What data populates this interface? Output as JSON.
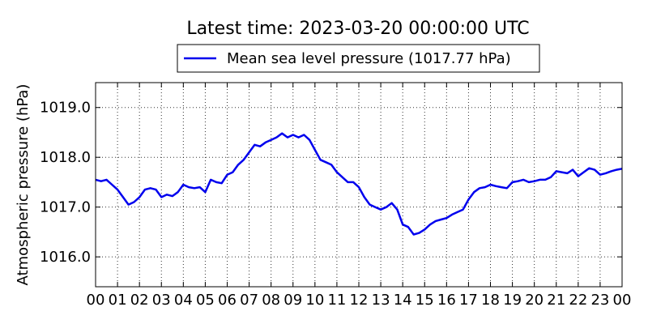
{
  "chart_data": {
    "type": "line",
    "title": "Latest time: 2023-03-20 00:00:00 UTC",
    "ylabel": "Atmospheric pressure (hPa)",
    "xlabel": "",
    "xlim": [
      0,
      24
    ],
    "ylim": [
      1015.4,
      1019.5
    ],
    "grid": true,
    "legend_position": "top-center",
    "x_tick_labels": [
      "00",
      "01",
      "02",
      "03",
      "04",
      "05",
      "06",
      "07",
      "08",
      "09",
      "10",
      "11",
      "12",
      "13",
      "14",
      "15",
      "16",
      "17",
      "18",
      "19",
      "20",
      "21",
      "22",
      "23",
      "00"
    ],
    "y_ticks": [
      1016.0,
      1017.0,
      1018.0,
      1019.0
    ],
    "y_tick_labels": [
      "1016.0",
      "1017.0",
      "1018.0",
      "1019.0"
    ],
    "series": [
      {
        "name": "Mean sea level pressure (1017.77 hPa)",
        "color": "#0000ee",
        "x": [
          0.0,
          0.25,
          0.5,
          0.75,
          1.0,
          1.25,
          1.5,
          1.75,
          2.0,
          2.25,
          2.5,
          2.75,
          3.0,
          3.25,
          3.5,
          3.75,
          4.0,
          4.25,
          4.5,
          4.75,
          5.0,
          5.25,
          5.5,
          5.75,
          6.0,
          6.25,
          6.5,
          6.75,
          7.0,
          7.25,
          7.5,
          7.75,
          8.0,
          8.25,
          8.5,
          8.75,
          9.0,
          9.25,
          9.5,
          9.75,
          10.0,
          10.25,
          10.5,
          10.75,
          11.0,
          11.25,
          11.5,
          11.75,
          12.0,
          12.25,
          12.5,
          12.75,
          13.0,
          13.25,
          13.5,
          13.75,
          14.0,
          14.25,
          14.5,
          14.75,
          15.0,
          15.25,
          15.5,
          15.75,
          16.0,
          16.25,
          16.5,
          16.75,
          17.0,
          17.25,
          17.5,
          17.75,
          18.0,
          18.25,
          18.5,
          18.75,
          19.0,
          19.25,
          19.5,
          19.75,
          20.0,
          20.25,
          20.5,
          20.75,
          21.0,
          21.25,
          21.5,
          21.75,
          22.0,
          22.25,
          22.5,
          22.75,
          23.0,
          23.25,
          23.5,
          23.75,
          24.0
        ],
        "y": [
          1017.55,
          1017.52,
          1017.55,
          1017.45,
          1017.35,
          1017.2,
          1017.05,
          1017.1,
          1017.2,
          1017.35,
          1017.38,
          1017.35,
          1017.2,
          1017.25,
          1017.22,
          1017.3,
          1017.45,
          1017.4,
          1017.38,
          1017.4,
          1017.3,
          1017.55,
          1017.5,
          1017.48,
          1017.65,
          1017.7,
          1017.85,
          1017.95,
          1018.1,
          1018.25,
          1018.22,
          1018.3,
          1018.35,
          1018.4,
          1018.48,
          1018.4,
          1018.45,
          1018.4,
          1018.45,
          1018.35,
          1018.15,
          1017.95,
          1017.9,
          1017.85,
          1017.7,
          1017.6,
          1017.5,
          1017.5,
          1017.4,
          1017.2,
          1017.05,
          1017.0,
          1016.95,
          1017.0,
          1017.08,
          1016.95,
          1016.65,
          1016.6,
          1016.45,
          1016.48,
          1016.55,
          1016.65,
          1016.72,
          1016.75,
          1016.78,
          1016.85,
          1016.9,
          1016.95,
          1017.15,
          1017.3,
          1017.38,
          1017.4,
          1017.45,
          1017.42,
          1017.4,
          1017.38,
          1017.5,
          1017.52,
          1017.55,
          1017.5,
          1017.52,
          1017.55,
          1017.55,
          1017.6,
          1017.72,
          1017.7,
          1017.68,
          1017.75,
          1017.62,
          1017.7,
          1017.78,
          1017.75,
          1017.65,
          1017.68,
          1017.72,
          1017.75,
          1017.77
        ]
      }
    ]
  }
}
